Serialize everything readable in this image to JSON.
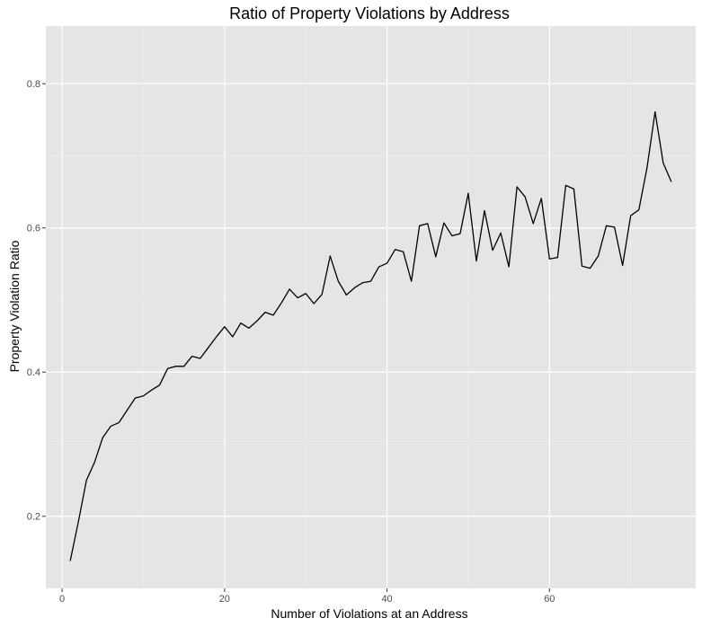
{
  "chart_data": {
    "type": "line",
    "title": "Ratio of Property Violations by Address",
    "xlabel": "Number of Violations at an Address",
    "ylabel": "Property Violation Ratio",
    "xlim": [
      -2,
      78
    ],
    "ylim": [
      0.1,
      0.88
    ],
    "x_ticks": [
      0,
      20,
      40,
      60
    ],
    "y_ticks": [
      0.2,
      0.4,
      0.6,
      0.8
    ],
    "x_tick_labels": [
      "0",
      "20",
      "40",
      "60"
    ],
    "y_tick_labels": [
      "0.2",
      "0.4",
      "0.6",
      "0.8"
    ],
    "grid": true,
    "series": [
      {
        "x": [
          1,
          2,
          3,
          4,
          5,
          6,
          7,
          8,
          9,
          10,
          11,
          12,
          13,
          14,
          15,
          16,
          17,
          18,
          19,
          20,
          21,
          22,
          23,
          24,
          25,
          26,
          27,
          28,
          29,
          30,
          31,
          32,
          33,
          34,
          35,
          36,
          37,
          38,
          39,
          40,
          41,
          42,
          43,
          44,
          45,
          46,
          47,
          48,
          49,
          50,
          51,
          52,
          53,
          54,
          55,
          56,
          57,
          58,
          59,
          60,
          61,
          62,
          63,
          64,
          65,
          66,
          67,
          68,
          69,
          70,
          71,
          72,
          73,
          74,
          75
        ],
        "values": [
          0.138,
          0.192,
          0.25,
          0.275,
          0.309,
          0.325,
          0.33,
          0.347,
          0.364,
          0.367,
          0.375,
          0.382,
          0.405,
          0.408,
          0.408,
          0.422,
          0.419,
          0.434,
          0.449,
          0.463,
          0.449,
          0.468,
          0.461,
          0.471,
          0.483,
          0.479,
          0.496,
          0.515,
          0.503,
          0.509,
          0.495,
          0.508,
          0.561,
          0.526,
          0.507,
          0.517,
          0.524,
          0.526,
          0.546,
          0.551,
          0.57,
          0.567,
          0.526,
          0.603,
          0.606,
          0.56,
          0.607,
          0.589,
          0.592,
          0.648,
          0.554,
          0.624,
          0.569,
          0.593,
          0.546,
          0.657,
          0.643,
          0.606,
          0.641,
          0.557,
          0.559,
          0.659,
          0.654,
          0.547,
          0.544,
          0.561,
          0.603,
          0.601,
          0.548,
          0.617,
          0.625,
          0.683,
          0.761,
          0.69,
          0.664
        ],
        "color": "#000000"
      }
    ],
    "colors": {
      "panel": "#e5e5e5",
      "grid_major": "#ffffff",
      "grid_minor": "#f0f0f0",
      "tick": "#333333",
      "tick_label": "#4d4d4d"
    }
  }
}
